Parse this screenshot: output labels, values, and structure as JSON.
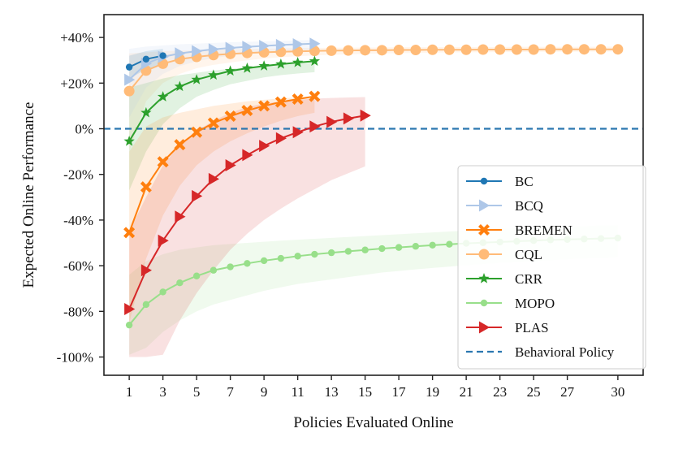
{
  "chart_data": {
    "type": "line",
    "title": "",
    "xlabel": "Policies Evaluated Online",
    "ylabel": "Expected Online Performance",
    "xlim": [
      -0.5,
      31.5
    ],
    "ylim": [
      -108,
      50
    ],
    "xticks": [
      1,
      3,
      5,
      7,
      9,
      11,
      13,
      15,
      17,
      19,
      21,
      23,
      25,
      27,
      30
    ],
    "yticks": [
      40,
      20,
      0,
      -20,
      -40,
      -60,
      -80,
      -100
    ],
    "ytick_labels": [
      "+40%",
      "+20%",
      "0%",
      "-20%",
      "-40%",
      "-60%",
      "-80%",
      "-100%"
    ],
    "baseline": {
      "name": "Behavioral Policy",
      "value": 0,
      "color": "#2b77b0"
    },
    "legend_position": "bottom-right",
    "series": [
      {
        "name": "MOPO",
        "color": "#98df8a",
        "marker": "circle",
        "x": [
          1,
          2,
          3,
          4,
          5,
          6,
          7,
          8,
          9,
          10,
          11,
          12,
          13,
          14,
          15,
          16,
          17,
          18,
          19,
          20,
          21,
          22,
          23,
          24,
          25,
          26,
          27,
          28,
          29,
          30
        ],
        "values": [
          -86,
          -77,
          -71.5,
          -67.5,
          -64.5,
          -62,
          -60.5,
          -59,
          -57.8,
          -56.8,
          -55.8,
          -55,
          -54.3,
          -53.7,
          -53.1,
          -52.5,
          -52,
          -51.5,
          -51,
          -50.6,
          -50.2,
          -49.9,
          -49.6,
          -49.3,
          -49,
          -48.7,
          -48.5,
          -48.3,
          -48.1,
          -47.9
        ],
        "band_upper": [
          -64,
          -58,
          -55,
          -53,
          -52,
          -51,
          -50.5,
          -50,
          -49.5,
          -49,
          -48.6,
          -48.2,
          -47.8,
          -47.4,
          -47,
          -46.6,
          -46.2,
          -45.8,
          -45.4,
          -45,
          -44.6,
          -44.2,
          -43.9,
          -43.6,
          -43.3,
          -43,
          -42.8,
          -42.6,
          -42.4,
          -42.2
        ],
        "band_lower": [
          -99,
          -96,
          -89,
          -84,
          -80,
          -77,
          -75,
          -73,
          -71,
          -69.5,
          -68,
          -67,
          -66,
          -65,
          -64,
          -63,
          -62.3,
          -61.6,
          -61,
          -60.4,
          -59.8,
          -59.3,
          -58.8,
          -58.4,
          -58,
          -57.6,
          -57.2,
          -56.9,
          -56.6,
          -56.3
        ]
      },
      {
        "name": "CQL",
        "color": "#ffbb78",
        "marker": "circle",
        "x": [
          1,
          2,
          3,
          4,
          5,
          6,
          7,
          8,
          9,
          10,
          11,
          12,
          13,
          14,
          15,
          16,
          17,
          18,
          19,
          20,
          21,
          22,
          23,
          24,
          25,
          26,
          27,
          28,
          29,
          30
        ],
        "values": [
          16.5,
          25.5,
          28.5,
          30.5,
          31.5,
          32.3,
          32.8,
          33.2,
          33.5,
          33.7,
          33.9,
          34.1,
          34.2,
          34.3,
          34.4,
          34.4,
          34.5,
          34.5,
          34.6,
          34.6,
          34.6,
          34.7,
          34.7,
          34.7,
          34.7,
          34.8,
          34.8,
          34.8,
          34.8,
          34.8
        ],
        "band_upper": [
          33,
          33.5,
          34,
          34.2,
          34.4,
          34.6,
          34.8,
          35,
          35.1,
          35.2,
          35.3,
          35.4,
          35.5,
          35.5,
          35.6,
          35.6,
          35.7,
          35.7,
          35.7,
          35.8,
          35.8,
          35.8,
          35.8,
          35.9,
          35.9,
          35.9,
          35.9,
          35.9,
          36,
          36
        ],
        "band_lower": [
          -10,
          12,
          20,
          24,
          26.5,
          28,
          29,
          30,
          30.8,
          31.3,
          31.8,
          32.1,
          32.4,
          32.6,
          32.8,
          33,
          33.1,
          33.2,
          33.3,
          33.4,
          33.5,
          33.5,
          33.6,
          33.6,
          33.7,
          33.7,
          33.7,
          33.8,
          33.8,
          33.8
        ]
      },
      {
        "name": "CRR",
        "color": "#2ca02c",
        "marker": "star",
        "x": [
          1,
          2,
          3,
          4,
          5,
          6,
          7,
          8,
          9,
          10,
          11,
          12
        ],
        "values": [
          -5.5,
          7,
          14,
          18.5,
          21.5,
          23.5,
          25.3,
          26.5,
          27.5,
          28.3,
          29,
          29.6
        ],
        "band_upper": [
          18,
          20,
          22,
          23.5,
          24.5,
          25.5,
          26.3,
          27,
          27.5,
          28,
          28.5,
          29
        ],
        "band_lower": [
          -27,
          -10,
          2,
          9,
          14,
          17,
          19.5,
          21,
          22.5,
          23.5,
          24.2,
          24.8
        ]
      },
      {
        "name": "BREMEN",
        "color": "#ff7f0e",
        "marker": "x",
        "x": [
          1,
          2,
          3,
          4,
          5,
          6,
          7,
          8,
          9,
          10,
          11,
          12
        ],
        "values": [
          -45.5,
          -25.5,
          -14.5,
          -7,
          -1.5,
          2.5,
          5.5,
          8,
          10,
          11.7,
          13,
          14.2
        ],
        "band_upper": [
          -10,
          1,
          5,
          7,
          8.5,
          10,
          11,
          12,
          12.7,
          13.3,
          13.8,
          14.3
        ],
        "band_lower": [
          -85,
          -57,
          -38,
          -25,
          -16,
          -10,
          -5.5,
          -2,
          1,
          3.5,
          5.5,
          7
        ]
      },
      {
        "name": "PLAS",
        "color": "#d62728",
        "marker": "triangle-right",
        "x": [
          1,
          2,
          3,
          4,
          5,
          6,
          7,
          8,
          9,
          10,
          11,
          12,
          13,
          14,
          15
        ],
        "values": [
          -79,
          -62,
          -49,
          -38.5,
          -29.5,
          -22,
          -16,
          -11.5,
          -7.5,
          -4.2,
          -1.5,
          1,
          3,
          4.5,
          5.8
        ],
        "band_upper": [
          -45,
          -30,
          -16,
          -7,
          -1,
          3.5,
          7,
          9.5,
          11,
          12,
          12.7,
          13.2,
          13.5,
          13.7,
          13.9
        ],
        "band_lower": [
          -100,
          -100,
          -99,
          -84,
          -72,
          -62,
          -53,
          -46,
          -40,
          -35,
          -30.5,
          -26.5,
          -22.5,
          -19.5,
          -16.5
        ]
      },
      {
        "name": "BCQ",
        "color": "#aec7e8",
        "marker": "triangle-right",
        "x": [
          1,
          2,
          3,
          4,
          5,
          6,
          7,
          8,
          9,
          10,
          11,
          12
        ],
        "values": [
          21.5,
          28.5,
          31.5,
          33,
          34,
          34.8,
          35.4,
          35.9,
          36.3,
          36.7,
          37,
          37.3
        ],
        "band_upper": [
          35,
          36,
          36.5,
          37,
          37.3,
          37.6,
          37.9,
          38.1,
          38.3,
          38.5,
          38.7,
          38.9
        ],
        "band_lower": [
          5,
          18,
          24,
          27.5,
          29.5,
          31,
          32,
          32.8,
          33.4,
          33.9,
          34.3,
          34.6
        ]
      },
      {
        "name": "BC",
        "color": "#1f77b4",
        "marker": "circle",
        "x": [
          1,
          2,
          3
        ],
        "values": [
          27,
          30.5,
          32
        ],
        "band_upper": [
          32,
          34,
          35
        ],
        "band_lower": [
          22,
          26,
          28.5
        ]
      }
    ],
    "legend": [
      "BC",
      "BCQ",
      "BREMEN",
      "CQL",
      "CRR",
      "MOPO",
      "PLAS",
      "Behavioral Policy"
    ]
  }
}
